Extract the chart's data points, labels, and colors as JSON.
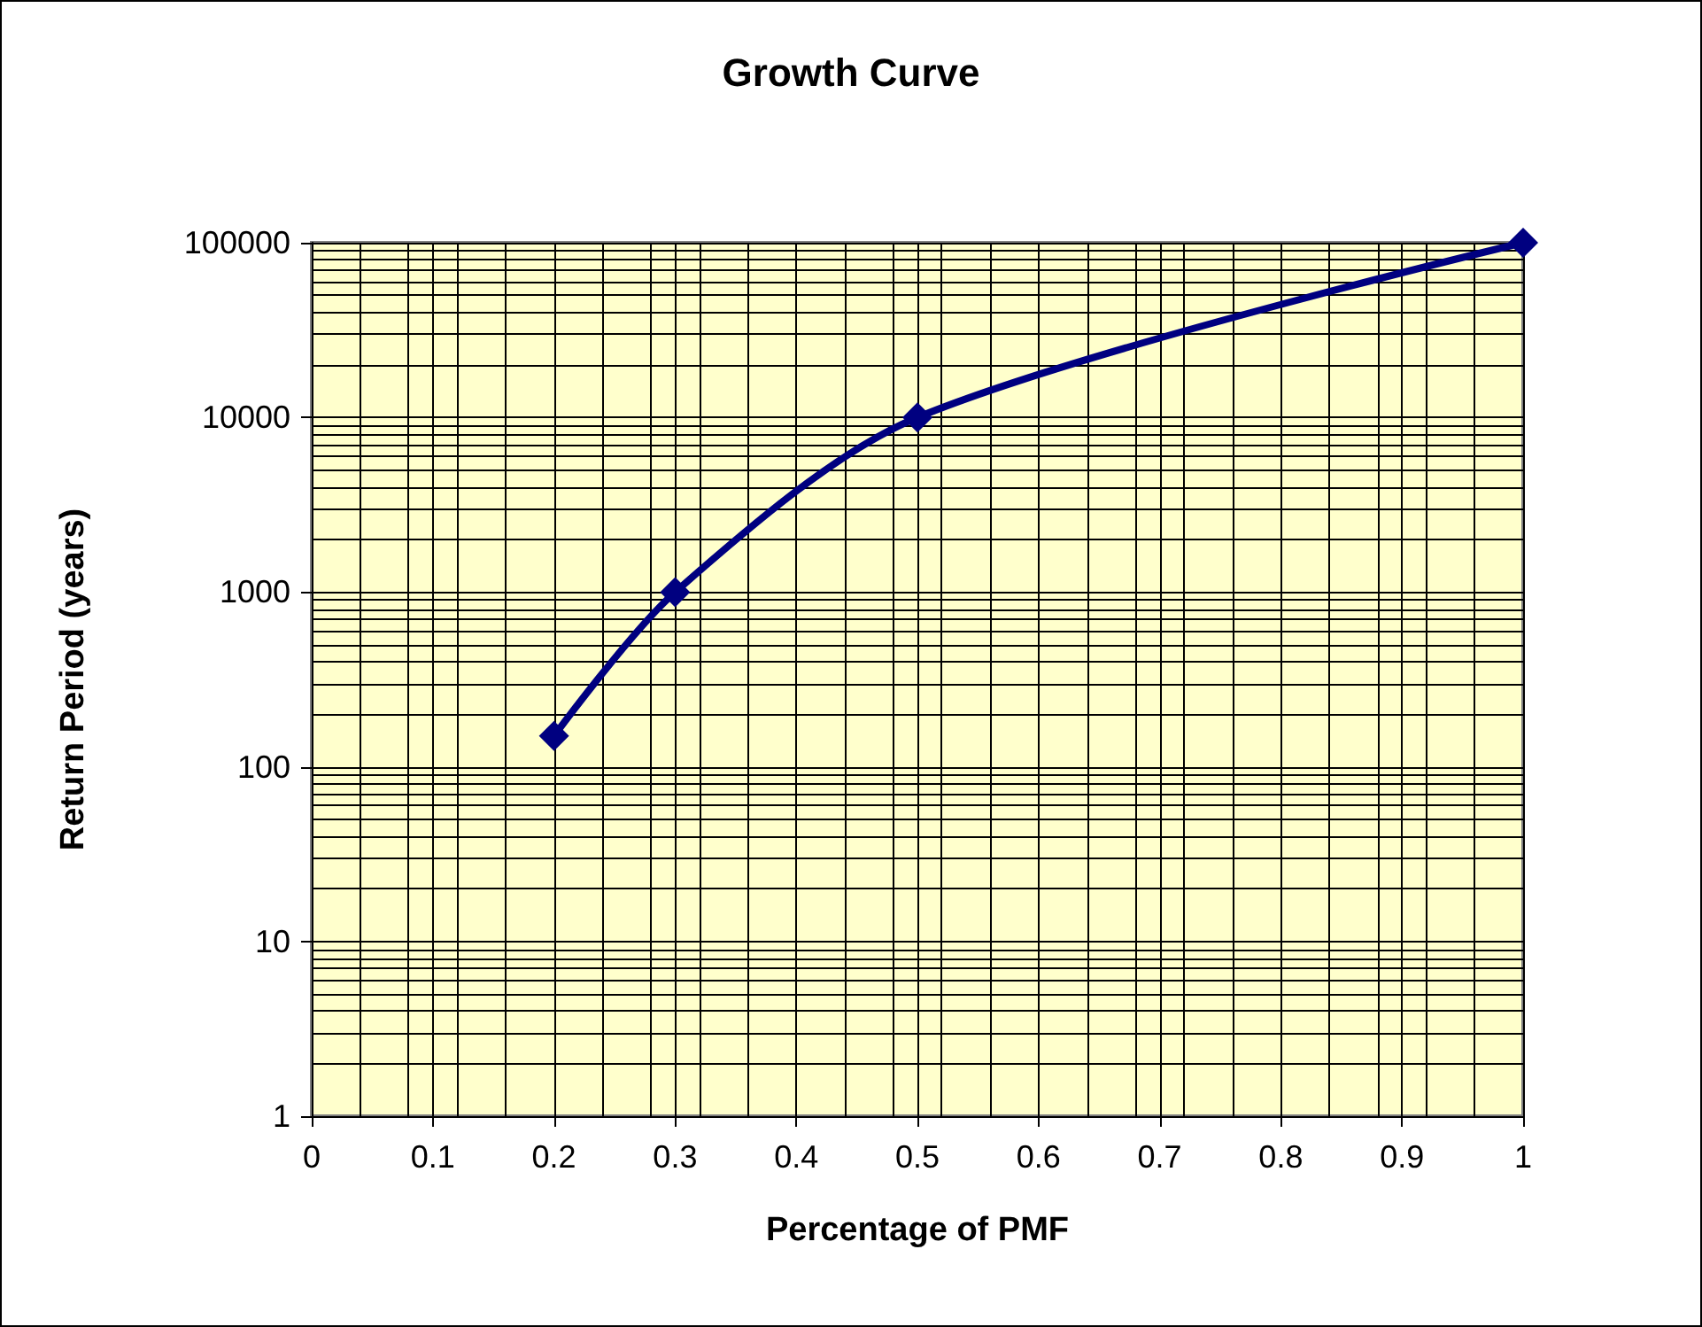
{
  "chart_data": {
    "type": "line",
    "title": "Growth Curve",
    "xlabel": "Percentage of PMF",
    "ylabel": "Return Period (years)",
    "x": [
      0.2,
      0.3,
      0.5,
      1
    ],
    "series": [
      {
        "color": "#000080",
        "values": [
          150,
          1000,
          10000,
          100000
        ]
      }
    ],
    "xlim": [
      0,
      1
    ],
    "xticks": [
      0,
      0.1,
      0.2,
      0.3,
      0.4,
      0.5,
      0.6,
      0.7,
      0.8,
      0.9,
      1
    ],
    "ylim": [
      1,
      100000
    ],
    "yticks": [
      1,
      10,
      100,
      1000,
      10000,
      100000
    ],
    "log": "y",
    "grid": true,
    "marker": "diamond",
    "line_style": "solid"
  }
}
